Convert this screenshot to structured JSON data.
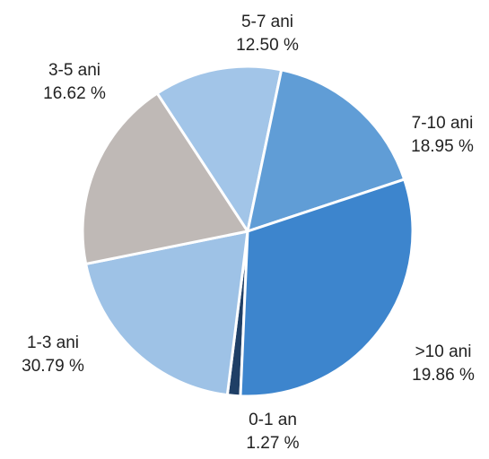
{
  "chart_data": {
    "type": "pie",
    "title": "",
    "slices": [
      {
        "label": "0-1 an",
        "value": 1.27,
        "display": "1.27 %",
        "color": "#1f3f66",
        "label_side": "bottom"
      },
      {
        "label": ">10 ani",
        "value": 19.86,
        "display": "19.86 %",
        "color": "#9ec2e6",
        "label_side": "right"
      },
      {
        "label": "7-10 ani",
        "value": 18.95,
        "display": "18.95 %",
        "color": "#bfb9b6",
        "label_side": "right"
      },
      {
        "label": "5-7 ani",
        "value": 12.5,
        "display": "12.50 %",
        "color": "#a2c5e8",
        "label_side": "top"
      },
      {
        "label": "3-5 ani",
        "value": 16.62,
        "display": "16.62 %",
        "color": "#609dd6",
        "label_side": "left"
      },
      {
        "label": "1-3 ani",
        "value": 30.79,
        "display": "30.79 %",
        "color": "#3d85cd",
        "label_side": "left"
      }
    ],
    "legend": "none"
  }
}
